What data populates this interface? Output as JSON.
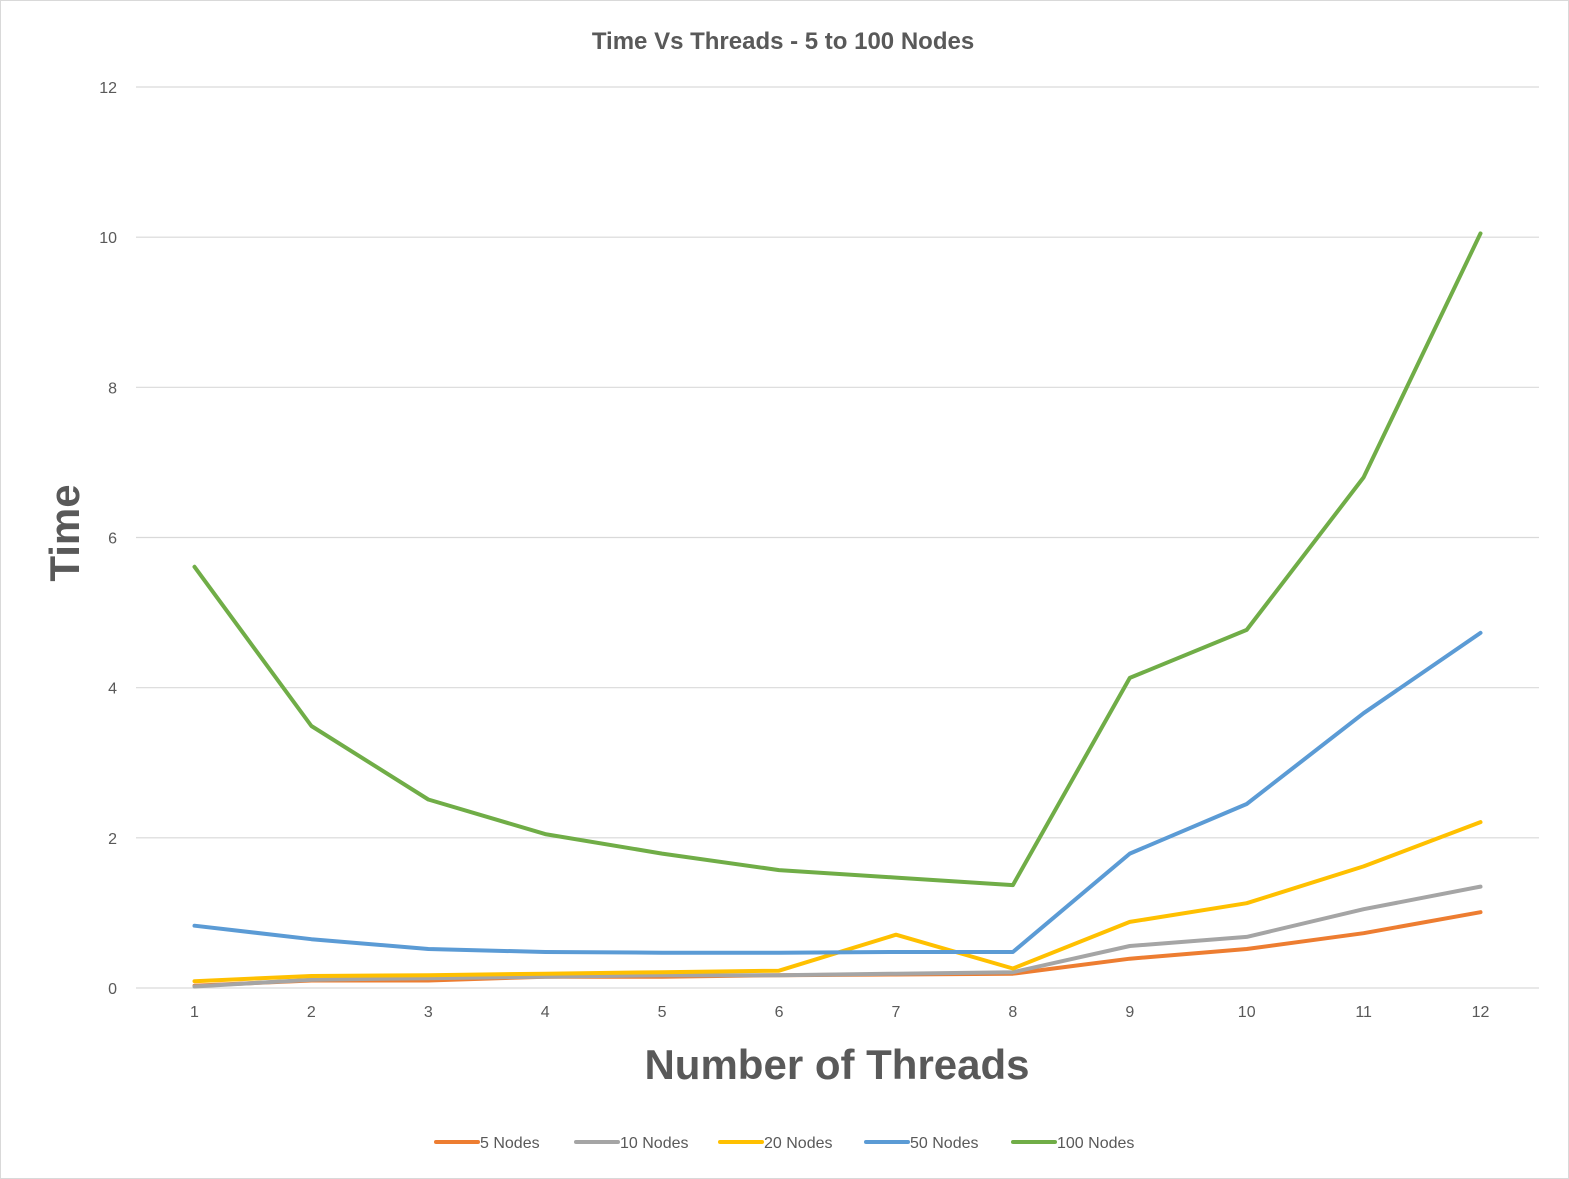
{
  "chart_data": {
    "type": "line",
    "title": "Time Vs Threads - 5 to 100 Nodes",
    "xlabel": "Number of Threads",
    "ylabel": "Time",
    "categories": [
      "1",
      "2",
      "3",
      "4",
      "5",
      "6",
      "7",
      "8",
      "9",
      "10",
      "11",
      "12"
    ],
    "ylim": [
      0,
      12
    ],
    "yticks": [
      "0",
      "2",
      "4",
      "6",
      "8",
      "10",
      "12"
    ],
    "grid": true,
    "legend_position": "bottom",
    "series": [
      {
        "name": "5 Nodes",
        "color": "#ed7d31",
        "values": [
          0.03,
          0.1,
          0.1,
          0.15,
          0.15,
          0.17,
          0.18,
          0.19,
          0.39,
          0.52,
          0.73,
          1.01
        ]
      },
      {
        "name": "10 Nodes",
        "color": "#a5a5a5",
        "values": [
          0.02,
          0.11,
          0.13,
          0.15,
          0.17,
          0.17,
          0.19,
          0.21,
          0.56,
          0.68,
          1.05,
          1.35
        ]
      },
      {
        "name": "20 Nodes",
        "color": "#ffc000",
        "values": [
          0.09,
          0.16,
          0.17,
          0.19,
          0.21,
          0.23,
          0.71,
          0.26,
          0.88,
          1.13,
          1.62,
          2.21
        ]
      },
      {
        "name": "50 Nodes",
        "color": "#5b9bd5",
        "values": [
          0.83,
          0.65,
          0.52,
          0.48,
          0.47,
          0.47,
          0.48,
          0.48,
          1.79,
          2.45,
          3.66,
          4.73
        ]
      },
      {
        "name": "100 Nodes",
        "color": "#70ad47",
        "values": [
          5.61,
          3.49,
          2.51,
          2.05,
          1.79,
          1.57,
          1.47,
          1.37,
          4.13,
          4.77,
          6.8,
          10.05
        ]
      }
    ]
  }
}
